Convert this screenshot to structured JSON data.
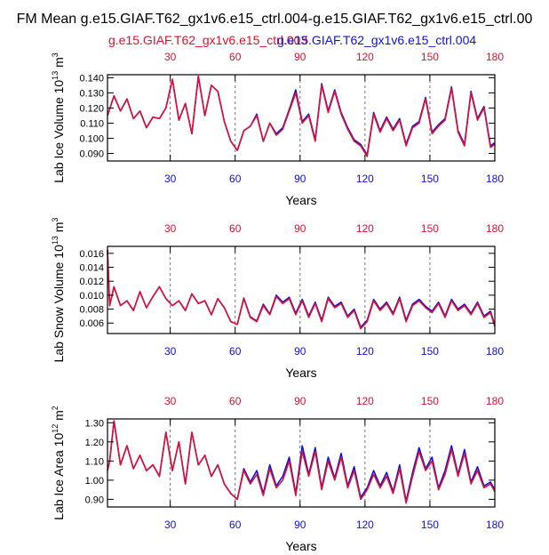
{
  "page": {
    "title": "FM Mean g.e15.GIAF.T62_gx1v6.e15_ctrl.004-g.e15.GIAF.T62_gx1v6.e15_ctrl.00",
    "legend_red": "g.e15.GIAF.T62_gx1v6.e15_ctrl.003",
    "legend_blue": "g.e15.GIAF.T62_gx1v6.e15_ctrl.004"
  },
  "colors": {
    "series_a": "#1010e0",
    "series_b": "#e01030",
    "axis": "#000000",
    "grid": "#777777"
  },
  "chart_data": [
    {
      "type": "line",
      "id": "ice-volume",
      "ylabel_main": "Lab Ice Volume 10",
      "ylabel_exp": "13",
      "ylabel_unit": " m",
      "ylabel_unit_exp": "3",
      "xlabel": "Years",
      "xlim": [
        1,
        180
      ],
      "ylim": [
        0.085,
        0.142
      ],
      "yticks": [
        0.09,
        0.1,
        0.11,
        0.12,
        0.13,
        0.14
      ],
      "ytick_labels": [
        "0.090",
        "0.100",
        "0.110",
        "0.120",
        "0.130",
        "0.140"
      ],
      "xticks": [
        30,
        60,
        90,
        120,
        150,
        180
      ],
      "xtick_labels": [
        "30",
        "60",
        "90",
        "120",
        "150",
        "180"
      ],
      "top_xtick_labels": [
        "30",
        "60",
        "90",
        "120",
        "150",
        "180"
      ],
      "grid_x": true,
      "series": [
        {
          "name": "g.e15.GIAF.T62_gx1v6.e15_ctrl.003",
          "color": "#e01030",
          "x": [
            1,
            4,
            7,
            10,
            13,
            16,
            19,
            22,
            25,
            28,
            31,
            34,
            37,
            40,
            43,
            46,
            49,
            52,
            55,
            58,
            61,
            64,
            67,
            70,
            73,
            76,
            79,
            82,
            85,
            88,
            91,
            94,
            97,
            100,
            103,
            106,
            109,
            112,
            115,
            118,
            121,
            124,
            127,
            130,
            133,
            136,
            139,
            142,
            145,
            148,
            151,
            154,
            157,
            160,
            163,
            166,
            169,
            172,
            175,
            178,
            180
          ],
          "values": [
            0.115,
            0.128,
            0.118,
            0.126,
            0.113,
            0.118,
            0.107,
            0.114,
            0.113,
            0.12,
            0.139,
            0.112,
            0.123,
            0.103,
            0.141,
            0.115,
            0.135,
            0.131,
            0.111,
            0.098,
            0.092,
            0.105,
            0.108,
            0.115,
            0.098,
            0.11,
            0.102,
            0.106,
            0.118,
            0.13,
            0.11,
            0.115,
            0.098,
            0.135,
            0.117,
            0.131,
            0.116,
            0.106,
            0.098,
            0.095,
            0.088,
            0.116,
            0.104,
            0.113,
            0.105,
            0.112,
            0.095,
            0.107,
            0.11,
            0.126,
            0.103,
            0.108,
            0.112,
            0.133,
            0.104,
            0.095,
            0.13,
            0.112,
            0.12,
            0.094,
            0.096
          ]
        },
        {
          "name": "g.e15.GIAF.T62_gx1v6.e15_ctrl.004",
          "color": "#1010e0",
          "x": [
            1,
            4,
            7,
            10,
            13,
            16,
            19,
            22,
            25,
            28,
            31,
            34,
            37,
            40,
            43,
            46,
            49,
            52,
            55,
            58,
            61,
            64,
            67,
            70,
            73,
            76,
            79,
            82,
            85,
            88,
            91,
            94,
            97,
            100,
            103,
            106,
            109,
            112,
            115,
            118,
            121,
            124,
            127,
            130,
            133,
            136,
            139,
            142,
            145,
            148,
            151,
            154,
            157,
            160,
            163,
            166,
            169,
            172,
            175,
            178,
            180
          ],
          "values": [
            0.115,
            0.128,
            0.118,
            0.126,
            0.113,
            0.118,
            0.107,
            0.114,
            0.113,
            0.12,
            0.139,
            0.112,
            0.123,
            0.103,
            0.141,
            0.115,
            0.135,
            0.131,
            0.111,
            0.098,
            0.092,
            0.105,
            0.108,
            0.116,
            0.098,
            0.11,
            0.103,
            0.107,
            0.119,
            0.132,
            0.111,
            0.116,
            0.099,
            0.136,
            0.118,
            0.132,
            0.117,
            0.107,
            0.099,
            0.096,
            0.089,
            0.117,
            0.105,
            0.114,
            0.106,
            0.113,
            0.096,
            0.108,
            0.111,
            0.127,
            0.104,
            0.109,
            0.113,
            0.134,
            0.105,
            0.096,
            0.131,
            0.113,
            0.121,
            0.095,
            0.097
          ]
        }
      ]
    },
    {
      "type": "line",
      "id": "snow-volume",
      "ylabel_main": "Lab Snow Volume 10",
      "ylabel_exp": "13",
      "ylabel_unit": " m",
      "ylabel_unit_exp": "3",
      "xlabel": "Years",
      "xlim": [
        1,
        180
      ],
      "ylim": [
        0.0045,
        0.017
      ],
      "yticks": [
        0.006,
        0.008,
        0.01,
        0.012,
        0.014,
        0.016
      ],
      "ytick_labels": [
        "0.006",
        "0.008",
        "0.010",
        "0.012",
        "0.014",
        "0.016"
      ],
      "xticks": [
        30,
        60,
        90,
        120,
        150,
        180
      ],
      "xtick_labels": [
        "30",
        "60",
        "90",
        "120",
        "150",
        "180"
      ],
      "top_xtick_labels": [
        "30",
        "60",
        "90",
        "120",
        "150",
        "180"
      ],
      "grid_x": true,
      "series": [
        {
          "name": "g.e15.GIAF.T62_gx1v6.e15_ctrl.003",
          "color": "#e01030",
          "x": [
            1,
            2,
            4,
            7,
            10,
            13,
            16,
            19,
            22,
            25,
            28,
            31,
            34,
            37,
            40,
            43,
            46,
            49,
            52,
            55,
            58,
            61,
            64,
            67,
            70,
            73,
            76,
            79,
            82,
            85,
            88,
            91,
            94,
            97,
            100,
            103,
            106,
            109,
            112,
            115,
            118,
            121,
            124,
            127,
            130,
            133,
            136,
            139,
            142,
            145,
            148,
            151,
            154,
            157,
            160,
            163,
            166,
            169,
            172,
            175,
            178,
            180
          ],
          "values": [
            0.0165,
            0.0085,
            0.0112,
            0.0085,
            0.0092,
            0.0078,
            0.0105,
            0.0082,
            0.0098,
            0.0112,
            0.0095,
            0.0085,
            0.0092,
            0.0078,
            0.0102,
            0.0088,
            0.0092,
            0.0072,
            0.0095,
            0.0082,
            0.0062,
            0.0058,
            0.0095,
            0.0068,
            0.0062,
            0.0085,
            0.0072,
            0.0098,
            0.0088,
            0.0095,
            0.0072,
            0.0092,
            0.0068,
            0.0088,
            0.0062,
            0.0095,
            0.0082,
            0.0088,
            0.0068,
            0.0078,
            0.0052,
            0.0062,
            0.0092,
            0.0078,
            0.0088,
            0.0072,
            0.0095,
            0.0062,
            0.0085,
            0.0092,
            0.0082,
            0.0075,
            0.0088,
            0.0068,
            0.0092,
            0.0078,
            0.0085,
            0.0072,
            0.0088,
            0.0068,
            0.0075,
            0.0055
          ]
        },
        {
          "name": "g.e15.GIAF.T62_gx1v6.e15_ctrl.004",
          "color": "#1010e0",
          "x": [
            1,
            2,
            4,
            7,
            10,
            13,
            16,
            19,
            22,
            25,
            28,
            31,
            34,
            37,
            40,
            43,
            46,
            49,
            52,
            55,
            58,
            61,
            64,
            67,
            70,
            73,
            76,
            79,
            82,
            85,
            88,
            91,
            94,
            97,
            100,
            103,
            106,
            109,
            112,
            115,
            118,
            121,
            124,
            127,
            130,
            133,
            136,
            139,
            142,
            145,
            148,
            151,
            154,
            157,
            160,
            163,
            166,
            169,
            172,
            175,
            178,
            180
          ],
          "values": [
            0.0165,
            0.0085,
            0.0112,
            0.0085,
            0.0092,
            0.0078,
            0.0105,
            0.0082,
            0.0098,
            0.0112,
            0.0095,
            0.0085,
            0.0092,
            0.0078,
            0.0102,
            0.0088,
            0.0092,
            0.0072,
            0.0095,
            0.0082,
            0.0062,
            0.0058,
            0.0096,
            0.0069,
            0.0063,
            0.0087,
            0.0073,
            0.01,
            0.009,
            0.0097,
            0.0074,
            0.0094,
            0.007,
            0.009,
            0.0064,
            0.0097,
            0.0084,
            0.009,
            0.007,
            0.008,
            0.0054,
            0.0064,
            0.0094,
            0.008,
            0.009,
            0.0074,
            0.0097,
            0.0064,
            0.0087,
            0.0094,
            0.0084,
            0.0077,
            0.009,
            0.007,
            0.0094,
            0.008,
            0.0087,
            0.0074,
            0.009,
            0.007,
            0.0077,
            0.0057
          ]
        }
      ]
    },
    {
      "type": "line",
      "id": "ice-area",
      "ylabel_main": "Lab Ice Area 10",
      "ylabel_exp": "12",
      "ylabel_unit": " m",
      "ylabel_unit_exp": "2",
      "xlabel": "Years",
      "xlim": [
        1,
        180
      ],
      "ylim": [
        0.86,
        1.32
      ],
      "yticks": [
        0.9,
        1.0,
        1.1,
        1.2,
        1.3
      ],
      "ytick_labels": [
        "0.90",
        "1.00",
        "1.10",
        "1.20",
        "1.30"
      ],
      "xticks": [
        30,
        60,
        90,
        120,
        150,
        180
      ],
      "xtick_labels": [
        "30",
        "60",
        "90",
        "120",
        "150",
        "180"
      ],
      "top_xtick_labels": [
        "30",
        "60",
        "90",
        "120",
        "150",
        "180"
      ],
      "grid_x": true,
      "series": [
        {
          "name": "g.e15.GIAF.T62_gx1v6.e15_ctrl.003",
          "color": "#e01030",
          "x": [
            1,
            2,
            4,
            7,
            10,
            13,
            16,
            19,
            22,
            25,
            28,
            31,
            34,
            37,
            40,
            43,
            46,
            49,
            52,
            55,
            58,
            61,
            64,
            67,
            70,
            73,
            76,
            79,
            82,
            85,
            88,
            91,
            94,
            97,
            100,
            103,
            106,
            109,
            112,
            115,
            118,
            121,
            124,
            127,
            130,
            133,
            136,
            139,
            142,
            145,
            148,
            151,
            154,
            157,
            160,
            163,
            166,
            169,
            172,
            175,
            178,
            180
          ],
          "values": [
            1.05,
            1.1,
            1.31,
            1.08,
            1.18,
            1.06,
            1.13,
            1.05,
            1.08,
            1.02,
            1.25,
            1.05,
            1.2,
            0.98,
            1.25,
            1.08,
            1.13,
            1.02,
            1.08,
            0.98,
            0.93,
            0.9,
            1.05,
            0.98,
            1.03,
            0.92,
            1.06,
            0.96,
            1.0,
            1.1,
            0.92,
            1.15,
            1.02,
            1.15,
            0.95,
            1.1,
            1.0,
            1.12,
            0.96,
            1.05,
            0.9,
            0.95,
            1.03,
            0.96,
            1.02,
            0.93,
            1.06,
            0.88,
            1.02,
            1.15,
            1.05,
            1.1,
            0.95,
            1.03,
            1.16,
            1.02,
            1.14,
            0.98,
            1.05,
            0.96,
            0.98,
            0.94
          ]
        },
        {
          "name": "g.e15.GIAF.T62_gx1v6.e15_ctrl.004",
          "color": "#1010e0",
          "x": [
            1,
            2,
            4,
            7,
            10,
            13,
            16,
            19,
            22,
            25,
            28,
            31,
            34,
            37,
            40,
            43,
            46,
            49,
            52,
            55,
            58,
            61,
            64,
            67,
            70,
            73,
            76,
            79,
            82,
            85,
            88,
            91,
            94,
            97,
            100,
            103,
            106,
            109,
            112,
            115,
            118,
            121,
            124,
            127,
            130,
            133,
            136,
            139,
            142,
            145,
            148,
            151,
            154,
            157,
            160,
            163,
            166,
            169,
            172,
            175,
            178,
            180
          ],
          "values": [
            1.05,
            1.1,
            1.31,
            1.08,
            1.18,
            1.06,
            1.13,
            1.05,
            1.08,
            1.02,
            1.25,
            1.05,
            1.2,
            0.98,
            1.25,
            1.08,
            1.13,
            1.02,
            1.08,
            0.98,
            0.93,
            0.9,
            1.06,
            0.99,
            1.05,
            0.93,
            1.08,
            0.97,
            1.02,
            1.12,
            0.93,
            1.18,
            1.03,
            1.17,
            0.96,
            1.12,
            1.01,
            1.14,
            0.97,
            1.07,
            0.91,
            0.96,
            1.05,
            0.97,
            1.04,
            0.94,
            1.08,
            0.89,
            1.04,
            1.17,
            1.06,
            1.12,
            0.96,
            1.05,
            1.18,
            1.03,
            1.16,
            0.99,
            1.07,
            0.97,
            0.99,
            0.95
          ]
        }
      ]
    }
  ]
}
